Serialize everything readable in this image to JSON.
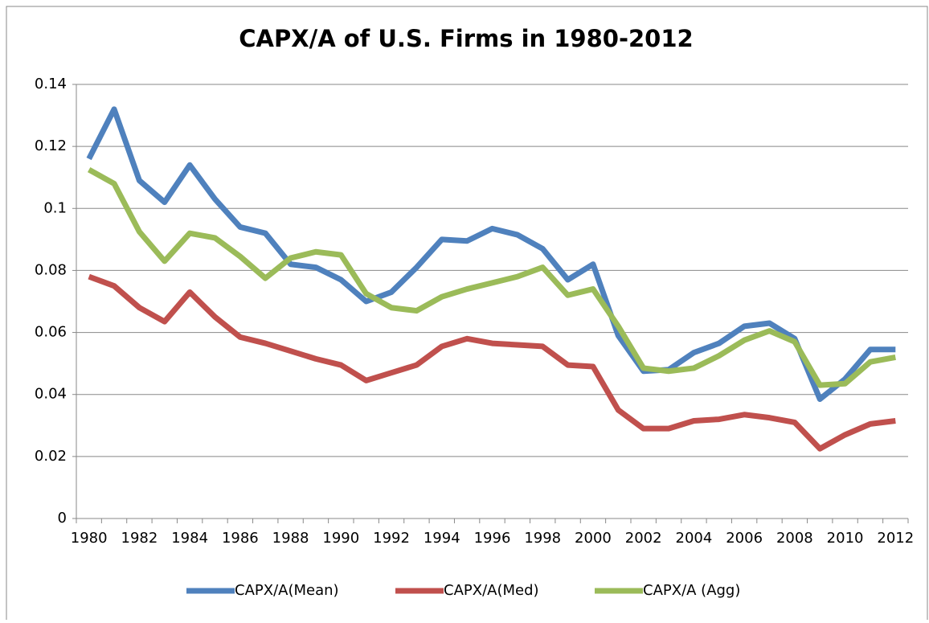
{
  "chart_data": {
    "type": "line",
    "title": "CAPX/A of U.S. Firms in 1980-2012",
    "categories": [
      "1980",
      null,
      "1982",
      null,
      "1984",
      null,
      "1986",
      null,
      "1988",
      null,
      "1990",
      null,
      "1992",
      null,
      "1994",
      null,
      "1996",
      null,
      "1998",
      null,
      "2000",
      null,
      "2002",
      null,
      "2004",
      null,
      "2006",
      null,
      "2008",
      null,
      "2010",
      null,
      "2012"
    ],
    "series": [
      {
        "name": "CAPX/A(Mean)",
        "color": "#4f81bd",
        "values": [
          0.116,
          0.132,
          0.109,
          0.102,
          0.114,
          0.103,
          0.094,
          0.092,
          0.082,
          0.081,
          0.077,
          0.07,
          0.073,
          0.081,
          0.09,
          0.0895,
          0.0935,
          0.0915,
          0.087,
          0.077,
          0.082,
          0.059,
          0.0475,
          0.048,
          0.0535,
          0.0565,
          0.062,
          0.063,
          0.058,
          0.0385,
          0.045,
          0.0545,
          0.0545
        ]
      },
      {
        "name": "CAPX/A(Med)",
        "color": "#c0504d",
        "values": [
          0.078,
          0.075,
          0.068,
          0.0635,
          0.073,
          0.065,
          0.0585,
          0.0565,
          0.054,
          0.0515,
          0.0495,
          0.0445,
          0.047,
          0.0495,
          0.0555,
          0.058,
          0.0565,
          0.056,
          0.0555,
          0.0495,
          0.049,
          0.035,
          0.029,
          0.029,
          0.0315,
          0.032,
          0.0335,
          0.0325,
          0.031,
          0.0225,
          0.027,
          0.0305,
          0.0315
        ]
      },
      {
        "name": "CAPX/A (Agg)",
        "color": "#9bbb59",
        "values": [
          0.1125,
          0.108,
          0.0925,
          0.083,
          0.092,
          0.0905,
          0.0845,
          0.0775,
          0.084,
          0.086,
          0.085,
          0.0725,
          0.068,
          0.067,
          0.0715,
          0.074,
          0.076,
          0.078,
          0.081,
          0.072,
          0.074,
          0.062,
          0.0485,
          0.0475,
          0.0485,
          0.0525,
          0.0575,
          0.0605,
          0.057,
          0.043,
          0.0435,
          0.0505,
          0.052
        ]
      }
    ],
    "ylim": [
      0,
      0.14
    ],
    "yticks": [
      0,
      0.02,
      0.04,
      0.06,
      0.08,
      0.1,
      0.12,
      0.14
    ],
    "grid": true,
    "legend": "bottom"
  }
}
